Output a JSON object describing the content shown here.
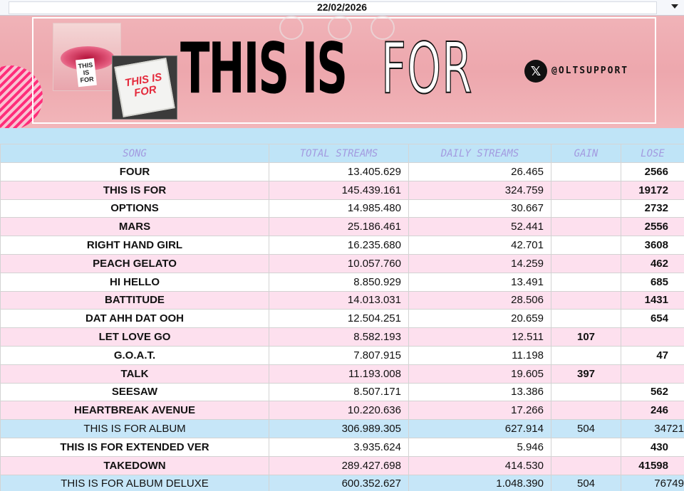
{
  "header": {
    "date": "22/02/2026"
  },
  "banner": {
    "title_part1": "THIS IS ",
    "title_part2": "FOR",
    "social_handle": "@OLTSUPPORT",
    "social_icon": "x-logo-icon",
    "lips_card_text": "THIS IS FOR",
    "cake_text": "THIS IS FOR"
  },
  "table": {
    "columns": [
      "SONG",
      "TOTAL STREAMS",
      "DAILY STREAMS",
      "GAIN",
      "LOSE"
    ],
    "rows": [
      {
        "song": "FOUR",
        "total": "13.405.629",
        "daily": "26.465",
        "gain": "",
        "lose": "2566",
        "type": "odd"
      },
      {
        "song": "THIS IS FOR",
        "total": "145.439.161",
        "daily": "324.759",
        "gain": "",
        "lose": "19172",
        "type": "even"
      },
      {
        "song": "OPTIONS",
        "total": "14.985.480",
        "daily": "30.667",
        "gain": "",
        "lose": "2732",
        "type": "odd"
      },
      {
        "song": "MARS",
        "total": "25.186.461",
        "daily": "52.441",
        "gain": "",
        "lose": "2556",
        "type": "even"
      },
      {
        "song": "RIGHT HAND GIRL",
        "total": "16.235.680",
        "daily": "42.701",
        "gain": "",
        "lose": "3608",
        "type": "odd"
      },
      {
        "song": "PEACH GELATO",
        "total": "10.057.760",
        "daily": "14.259",
        "gain": "",
        "lose": "462",
        "type": "even"
      },
      {
        "song": "HI HELLO",
        "total": "8.850.929",
        "daily": "13.491",
        "gain": "",
        "lose": "685",
        "type": "odd"
      },
      {
        "song": "BATTITUDE",
        "total": "14.013.031",
        "daily": "28.506",
        "gain": "",
        "lose": "1431",
        "type": "even"
      },
      {
        "song": "DAT AHH DAT OOH",
        "total": "12.504.251",
        "daily": "20.659",
        "gain": "",
        "lose": "654",
        "type": "odd"
      },
      {
        "song": "LET LOVE GO",
        "total": "8.582.193",
        "daily": "12.511",
        "gain": "107",
        "lose": "",
        "type": "even"
      },
      {
        "song": "G.O.A.T.",
        "total": "7.807.915",
        "daily": "11.198",
        "gain": "",
        "lose": "47",
        "type": "odd"
      },
      {
        "song": "TALK",
        "total": "11.193.008",
        "daily": "19.605",
        "gain": "397",
        "lose": "",
        "type": "even"
      },
      {
        "song": "SEESAW",
        "total": "8.507.171",
        "daily": "13.386",
        "gain": "",
        "lose": "562",
        "type": "odd"
      },
      {
        "song": "HEARTBREAK AVENUE",
        "total": "10.220.636",
        "daily": "17.266",
        "gain": "",
        "lose": "246",
        "type": "even"
      },
      {
        "song": "THIS IS FOR ALBUM",
        "total": "306.989.305",
        "daily": "627.914",
        "gain": "504",
        "lose": "34721",
        "type": "album"
      },
      {
        "song": "THIS IS FOR EXTENDED VER",
        "total": "3.935.624",
        "daily": "5.946",
        "gain": "",
        "lose": "430",
        "type": "odd"
      },
      {
        "song": "TAKEDOWN",
        "total": "289.427.698",
        "daily": "414.530",
        "gain": "",
        "lose": "41598",
        "type": "even"
      },
      {
        "song": "THIS IS FOR ALBUM DELUXE",
        "total": "600.352.627",
        "daily": "1.048.390",
        "gain": "504",
        "lose": "76749",
        "type": "album"
      }
    ]
  }
}
